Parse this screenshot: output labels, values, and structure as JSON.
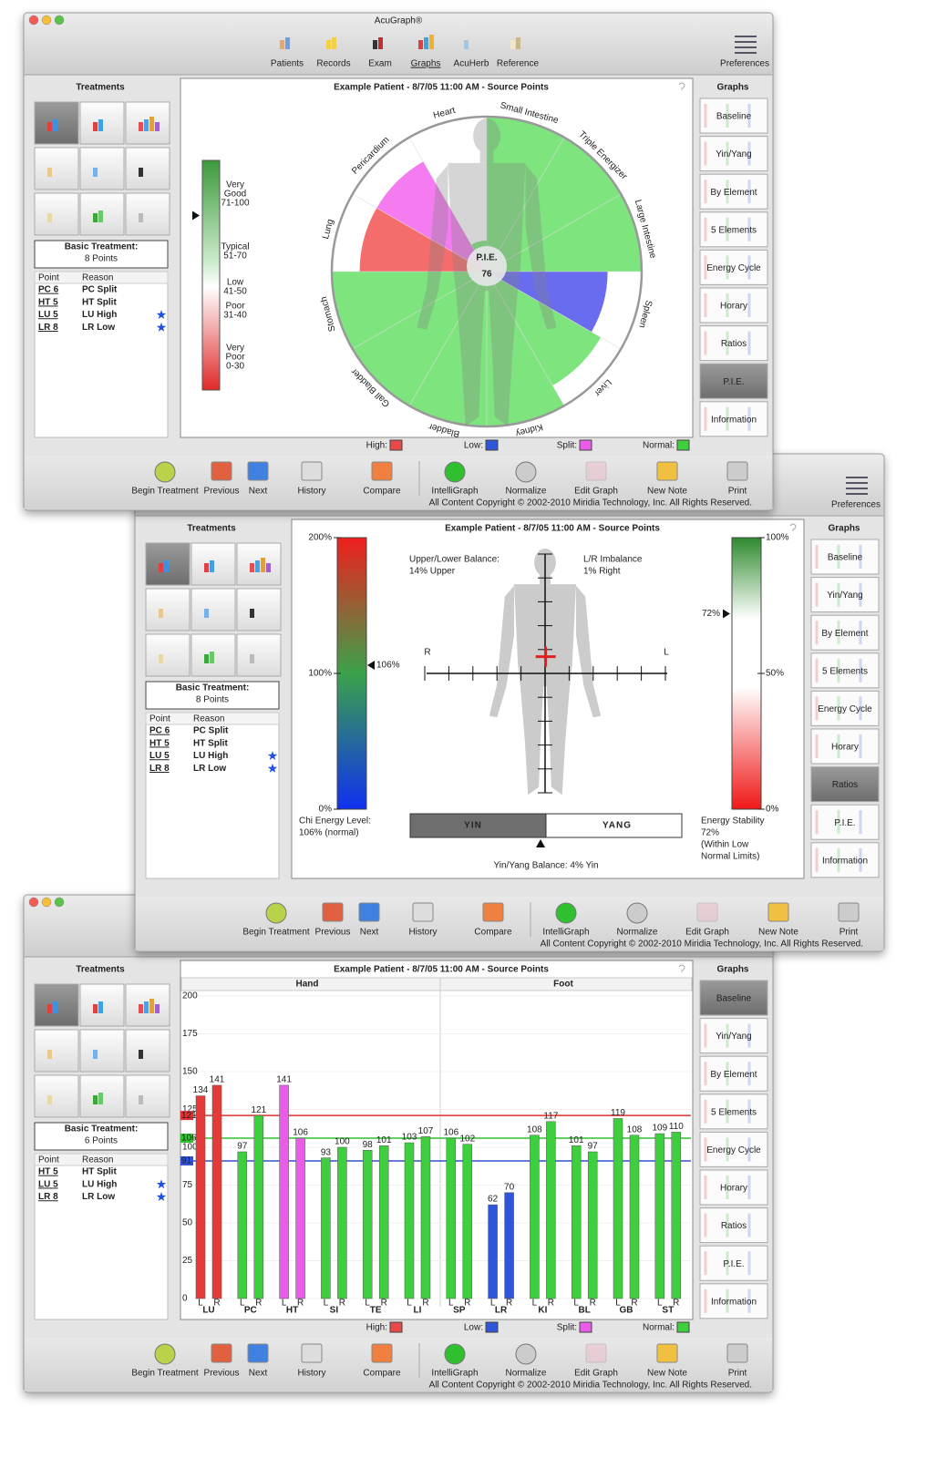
{
  "app": {
    "title": "AcuGraph®",
    "toolbar": [
      "Patients",
      "Records",
      "Exam",
      "Graphs",
      "AcuHerb",
      "Reference"
    ],
    "preferences": "Preferences",
    "treatments_heading": "Treatments",
    "graphs_heading": "Graphs",
    "graphs": [
      "Baseline",
      "Yin/Yang",
      "By Element",
      "5 Elements",
      "Energy Cycle",
      "Horary",
      "Ratios",
      "P.I.E.",
      "Information"
    ],
    "bottom_toolbar": [
      {
        "label": "Begin Treatment",
        "disabled": false
      },
      {
        "label": "Previous",
        "disabled": false
      },
      {
        "label": "Next",
        "disabled": false
      },
      {
        "label": "History",
        "disabled": false
      },
      {
        "label": "Compare",
        "disabled": false
      },
      {
        "label": "IntelliGraph",
        "disabled": false
      },
      {
        "label": "Normalize",
        "disabled": false
      },
      {
        "label": "Edit Graph",
        "disabled": true
      },
      {
        "label": "New Note",
        "disabled": false
      },
      {
        "label": "Print",
        "disabled": false
      }
    ],
    "legend": [
      {
        "label": "High:",
        "color": "#e84848"
      },
      {
        "label": "Low:",
        "color": "#2f55d8"
      },
      {
        "label": "Split:",
        "color": "#e85ce8"
      },
      {
        "label": "Normal:",
        "color": "#3ecf3e"
      }
    ],
    "copyright": "All Content Copyright © 2002-2010 Miridia Technology, Inc.  All Rights Reserved."
  },
  "windows": [
    {
      "selected_graph": 7,
      "treatment": {
        "label": "Basic Treatment:",
        "points": "8 Points",
        "header": [
          "Point",
          "Reason"
        ],
        "rows": [
          {
            "point": "PC 6",
            "reason": "PC Split",
            "star": false
          },
          {
            "point": "HT 5",
            "reason": "HT Split",
            "star": false
          },
          {
            "point": "LU 5",
            "reason": "LU High",
            "star": true
          },
          {
            "point": "LR 8",
            "reason": "LR Low",
            "star": true
          }
        ]
      },
      "chart": {
        "type": "pie",
        "title": "Example Patient - 8/7/05 11:00 AM - Source Points",
        "center_label": "P.I.E.",
        "score": 76,
        "scale": {
          "ylim": [
            0,
            100
          ],
          "bands": [
            {
              "lines": [
                "Very",
                "Good",
                "71-100"
              ]
            },
            {
              "lines": [
                "Typical",
                "51-70"
              ]
            },
            {
              "lines": [
                "Low",
                "41-50"
              ]
            },
            {
              "lines": [
                "Poor",
                "31-40"
              ]
            },
            {
              "lines": [
                "Very",
                "Poor",
                "0-30"
              ]
            }
          ]
        },
        "rlim": [
          0,
          100
        ],
        "segments": [
          {
            "name": "Small Intestine",
            "value": 100,
            "color": "#7ee47e"
          },
          {
            "name": "Triple Energizer",
            "value": 100,
            "color": "#7ee47e"
          },
          {
            "name": "Large Intestine",
            "value": 100,
            "color": "#7ee47e"
          },
          {
            "name": "Spleen",
            "value": 78,
            "color": "#6a6cf0"
          },
          {
            "name": "Liver",
            "value": 85,
            "color": "#7ee47e"
          },
          {
            "name": "Kidney",
            "value": 100,
            "color": "#7ee47e"
          },
          {
            "name": "Bladder",
            "value": 100,
            "color": "#7ee47e"
          },
          {
            "name": "Gall Bladder",
            "value": 100,
            "color": "#7ee47e"
          },
          {
            "name": "Stomach",
            "value": 100,
            "color": "#7ee47e"
          },
          {
            "name": "Lung",
            "value": 82,
            "color": "#f46c6c"
          },
          {
            "name": "Pericardium",
            "value": 82,
            "color": "#f47cf0"
          },
          {
            "name": "Heart",
            "value": 20,
            "color": "#7ee47e"
          }
        ]
      }
    },
    {
      "selected_graph": 6,
      "treatment": {
        "label": "Basic Treatment:",
        "points": "8 Points",
        "header": [
          "Point",
          "Reason"
        ],
        "rows": [
          {
            "point": "PC 6",
            "reason": "PC Split",
            "star": false
          },
          {
            "point": "HT 5",
            "reason": "HT Split",
            "star": false
          },
          {
            "point": "LU 5",
            "reason": "LU High",
            "star": true
          },
          {
            "point": "LR 8",
            "reason": "LR Low",
            "star": true
          }
        ]
      },
      "chart": {
        "type": "ratios",
        "title": "Example Patient - 8/7/05 11:00 AM - Source Points",
        "chi": {
          "value": 106,
          "value_label": "106%",
          "ylim": [
            0,
            200
          ],
          "ticks": [
            {
              "value": 200,
              "label": "200%"
            },
            {
              "value": 100,
              "label": "100%"
            },
            {
              "value": 0,
              "label": "0%"
            }
          ],
          "caption": [
            "Chi Energy Level:",
            "106% (normal)"
          ]
        },
        "stability": {
          "value": 72,
          "value_label": "72%",
          "ylim": [
            0,
            100
          ],
          "ticks": [
            {
              "value": 100,
              "label": "100%"
            },
            {
              "value": 50,
              "label": "50%"
            },
            {
              "value": 0,
              "label": "0%"
            }
          ],
          "caption": [
            "Energy Stability",
            "72%",
            "(Within Low",
            "Normal Limits)"
          ]
        },
        "upper_lower": {
          "label": "Upper/Lower Balance:",
          "value_text": "14% Upper",
          "value": 14,
          "ylim": [
            -100,
            100
          ]
        },
        "left_right": {
          "label": "L/R Imbalance",
          "value_text": "1%  Right",
          "value": 1,
          "xlim": [
            100,
            -100
          ],
          "sides": [
            "R",
            "L"
          ]
        },
        "yin_yang": {
          "yin": "YIN",
          "yang": "YANG",
          "value": 4,
          "xlim": [
            100,
            -100
          ],
          "caption": "Yin/Yang Balance: 4% Yin"
        }
      }
    },
    {
      "selected_graph": 0,
      "treatment": {
        "label": "Basic Treatment:",
        "points": "6 Points",
        "header": [
          "Point",
          "Reason"
        ],
        "rows": [
          {
            "point": "HT 5",
            "reason": "HT Split",
            "star": false
          },
          {
            "point": "LU 5",
            "reason": "LU High",
            "star": true
          },
          {
            "point": "LR 8",
            "reason": "LR Low",
            "star": true
          }
        ]
      },
      "chart": {
        "type": "bar",
        "title": "Example Patient - 8/7/05 11:00 AM - Source Points",
        "sections": [
          "Hand",
          "Foot"
        ],
        "categories": [
          "LU",
          "PC",
          "HT",
          "SI",
          "TE",
          "LI",
          "SP",
          "LR",
          "KI",
          "BL",
          "GB",
          "ST"
        ],
        "bar_colors": [
          "#e53a3a",
          "#3ecf3e",
          "#e85ce8",
          "#3ecf3e",
          "#3ecf3e",
          "#3ecf3e",
          "#3ecf3e",
          "#2f55d8",
          "#3ecf3e",
          "#3ecf3e",
          "#3ecf3e",
          "#3ecf3e"
        ],
        "series": [
          {
            "name": "L",
            "values": [
              134,
              97,
              141,
              93,
              98,
              103,
              106,
              62,
              108,
              101,
              119,
              109
            ]
          },
          {
            "name": "R",
            "values": [
              141,
              121,
              106,
              100,
              101,
              107,
              102,
              70,
              117,
              97,
              108,
              110
            ]
          }
        ],
        "ylim": [
          0,
          200
        ],
        "yticks": [
          0,
          25,
          50,
          75,
          100,
          125,
          150,
          175,
          200
        ],
        "grid": true,
        "reference_lines": [
          {
            "value": 121,
            "color": "#e03030"
          },
          {
            "value": 106,
            "color": "#30c030"
          },
          {
            "value": 91,
            "color": "#3050d0"
          }
        ]
      }
    }
  ]
}
